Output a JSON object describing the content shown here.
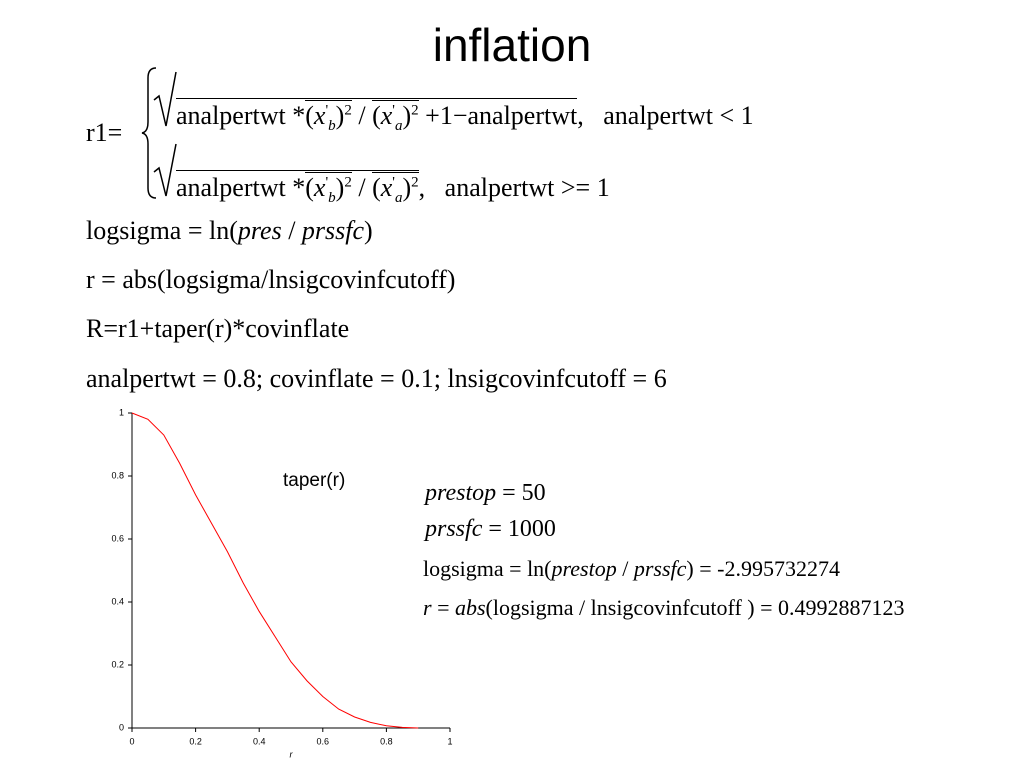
{
  "title": "inflation",
  "r1": {
    "lhs": "r1=",
    "cases": [
      {
        "expr": [
          "analpertwt",
          "*",
          "(",
          "x",
          "b",
          "'",
          ")",
          "2",
          "/",
          "(",
          "x",
          "a",
          "'",
          ")",
          "2",
          "+1",
          "−",
          "analpertwt",
          ","
        ],
        "condition": "analpertwt < 1"
      },
      {
        "expr": [
          "analpertwt",
          "*",
          "(",
          "x",
          "b",
          "'",
          ")",
          "2",
          "/",
          "(",
          "x",
          "a",
          "'",
          ")",
          "2",
          ","
        ],
        "condition": "analpertwt >= 1"
      }
    ]
  },
  "lines": [
    [
      "logsigma = ln(",
      "pres",
      " / ",
      "prssfc",
      ")"
    ],
    [
      "r = abs(logsigma/lnsigcovinfcutoff)"
    ],
    [
      "R=r1+taper(r)*covinflate"
    ],
    [
      "analpertwt = 0.8; covinflate = 0.1; lnsigcovinfcutoff = 6"
    ]
  ],
  "example": [
    [
      "prestop",
      " = 50"
    ],
    [
      "prssfc",
      " = 1000"
    ],
    [
      "logsigma = ln(",
      "prestop",
      " / ",
      "prssfc",
      ") = -2.995732274"
    ],
    [
      "r",
      " = ",
      "abs",
      "(logsigma / lnsigcovinfcutoff ) = 0.4992887123"
    ]
  ],
  "chart_data": {
    "type": "line",
    "annotation": "taper(r)",
    "xlabel": "r",
    "x": [
      0,
      0.05,
      0.1,
      0.15,
      0.2,
      0.25,
      0.3,
      0.35,
      0.4,
      0.45,
      0.5,
      0.55,
      0.6,
      0.65,
      0.7,
      0.75,
      0.8,
      0.85,
      0.9
    ],
    "values": [
      1,
      0.98,
      0.93,
      0.84,
      0.74,
      0.65,
      0.56,
      0.46,
      0.37,
      0.29,
      0.21,
      0.15,
      0.1,
      0.06,
      0.035,
      0.018,
      0.007,
      0.002,
      0
    ],
    "color": "#ff0000",
    "xlim": [
      0,
      1
    ],
    "ylim": [
      0,
      1
    ],
    "xticks": [
      0,
      0.2,
      0.4,
      0.6,
      0.8,
      1
    ],
    "yticks": [
      0,
      0.2,
      0.4,
      0.6,
      0.8,
      1
    ],
    "grid": false
  }
}
